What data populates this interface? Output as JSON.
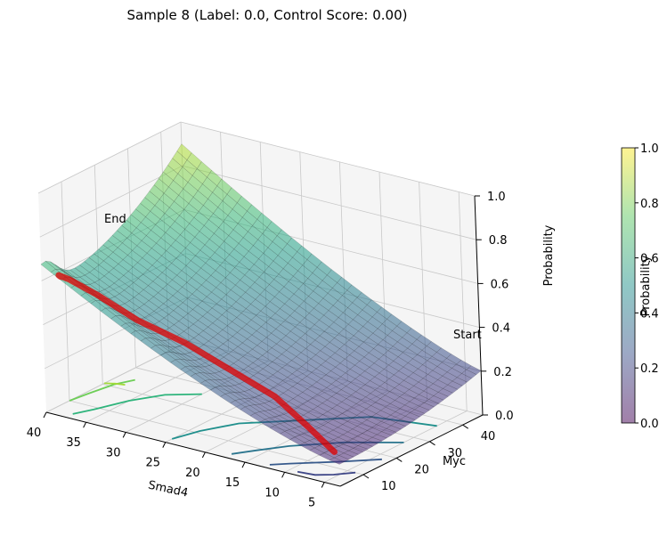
{
  "chart_data": {
    "type": "surface3d",
    "title": "Sample 8 (Label: 0.0, Control Score: 0.00)",
    "xlabel": "Smad4",
    "ylabel": "Myc",
    "zlabel": "Probability",
    "xlim": [
      40,
      3
    ],
    "ylim": [
      3,
      46
    ],
    "zlim": [
      0,
      1
    ],
    "x_ticks": [
      "40",
      "35",
      "30",
      "25",
      "20",
      "15",
      "10",
      "5"
    ],
    "y_ticks": [
      "10",
      "20",
      "30",
      "40"
    ],
    "z_ticks": [
      "0.0",
      "0.2",
      "0.4",
      "0.6",
      "0.8",
      "1.0"
    ],
    "colorbar": {
      "label": "Probability",
      "range": [
        0,
        1
      ],
      "ticks": [
        "0.0",
        "0.2",
        "0.4",
        "0.6",
        "0.8",
        "1.0"
      ],
      "colormap": "viridis",
      "alpha": 0.5
    },
    "surface": {
      "colormap": "viridis",
      "alpha": 0.5,
      "edge_color": "#000000"
    },
    "trajectory": {
      "color": "#e00000",
      "points": [
        {
          "smad4": 4,
          "myc": 4,
          "probability": 0.14
        },
        {
          "smad4": 8,
          "myc": 6,
          "probability": 0.2
        },
        {
          "smad4": 13,
          "myc": 8,
          "probability": 0.28
        },
        {
          "smad4": 19,
          "myc": 9,
          "probability": 0.34
        },
        {
          "smad4": 25,
          "myc": 10,
          "probability": 0.4
        },
        {
          "smad4": 31,
          "myc": 10,
          "probability": 0.45
        },
        {
          "smad4": 36,
          "myc": 10,
          "probability": 0.52
        },
        {
          "smad4": 39,
          "myc": 9,
          "probability": 0.57
        },
        {
          "smad4": 39.5,
          "myc": 7,
          "probability": 0.6
        },
        {
          "smad4": 38,
          "myc": 4,
          "probability": 0.63
        }
      ],
      "start_label": "Start",
      "end_label": "End"
    },
    "contours": [
      {
        "level": 0.1,
        "color": "#3f4788",
        "points": [
          [
            4,
            10
          ],
          [
            5.5,
            7
          ],
          [
            7,
            5
          ],
          [
            9,
            4.5
          ]
        ]
      },
      {
        "level": 0.2,
        "color": "#375a8c",
        "points": [
          [
            4,
            18
          ],
          [
            7,
            13
          ],
          [
            9,
            10
          ],
          [
            11,
            7
          ],
          [
            12.5,
            4.5
          ]
        ]
      },
      {
        "level": 0.3,
        "color": "#2b758e",
        "points": [
          [
            5,
            27
          ],
          [
            10,
            21
          ],
          [
            14,
            14
          ],
          [
            16,
            9
          ],
          [
            17.5,
            5
          ]
        ]
      },
      {
        "level": 0.4,
        "color": "#21908d",
        "points": [
          [
            5,
            37
          ],
          [
            12,
            34
          ],
          [
            17,
            26
          ],
          [
            22,
            18
          ],
          [
            24,
            11
          ],
          [
            25,
            5
          ]
        ]
      },
      {
        "level": 0.5,
        "color": "#2fb47c",
        "points": [
          [
            30,
            26
          ],
          [
            33,
            22
          ],
          [
            35,
            16
          ],
          [
            36.5,
            9
          ],
          [
            37.5,
            5
          ]
        ]
      },
      {
        "level": 0.6,
        "color": "#6ece58",
        "points": [
          [
            38,
            25
          ],
          [
            39,
            21
          ],
          [
            39.6,
            15
          ],
          [
            40,
            10
          ]
        ]
      },
      {
        "level": 0.7,
        "color": "#a2da37",
        "points": [
          [
            38,
            22
          ],
          [
            39,
            21.5
          ],
          [
            40,
            20.5
          ]
        ]
      }
    ]
  }
}
